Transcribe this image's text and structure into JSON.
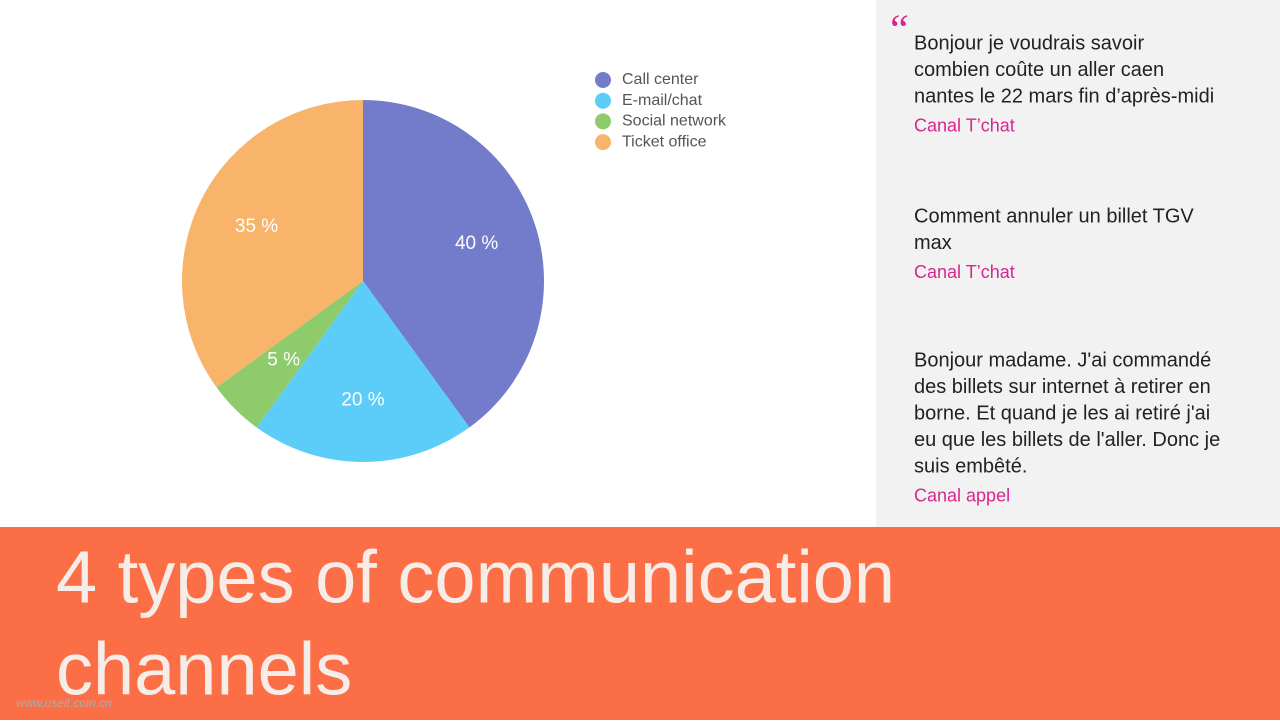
{
  "chart_data": {
    "type": "pie",
    "categories": [
      "Call center",
      "E-mail/chat",
      "Social network",
      "Ticket office"
    ],
    "values": [
      40,
      20,
      5,
      35
    ],
    "value_labels": [
      "40 %",
      "20 %",
      "5 %",
      "35 %"
    ],
    "colors": [
      "#737bcb",
      "#5bcdf8",
      "#8ecb6b",
      "#f8b46a"
    ],
    "legend": "top-right"
  },
  "quote_mark": "“",
  "quotes": [
    {
      "lines": [
        "Bonjour je voudrais savoir",
        "combien coûte un aller caen",
        "nantes le 22 mars fin d’après-midi"
      ],
      "channel": "Canal T’chat"
    },
    {
      "lines": [
        "Comment annuler un billet TGV",
        "max"
      ],
      "channel": "Canal T’chat"
    },
    {
      "lines": [
        "Bonjour madame. J'ai commandé",
        "des billets sur internet à retirer en",
        "borne. Et quand je les ai retiré j'ai",
        "eu que les billets de l'aller. Donc je",
        "suis embêté."
      ],
      "channel": "Canal appel"
    }
  ],
  "banner": {
    "lines": [
      "4 types of communication",
      "channels"
    ]
  },
  "watermark": "www.useit.com.cn"
}
